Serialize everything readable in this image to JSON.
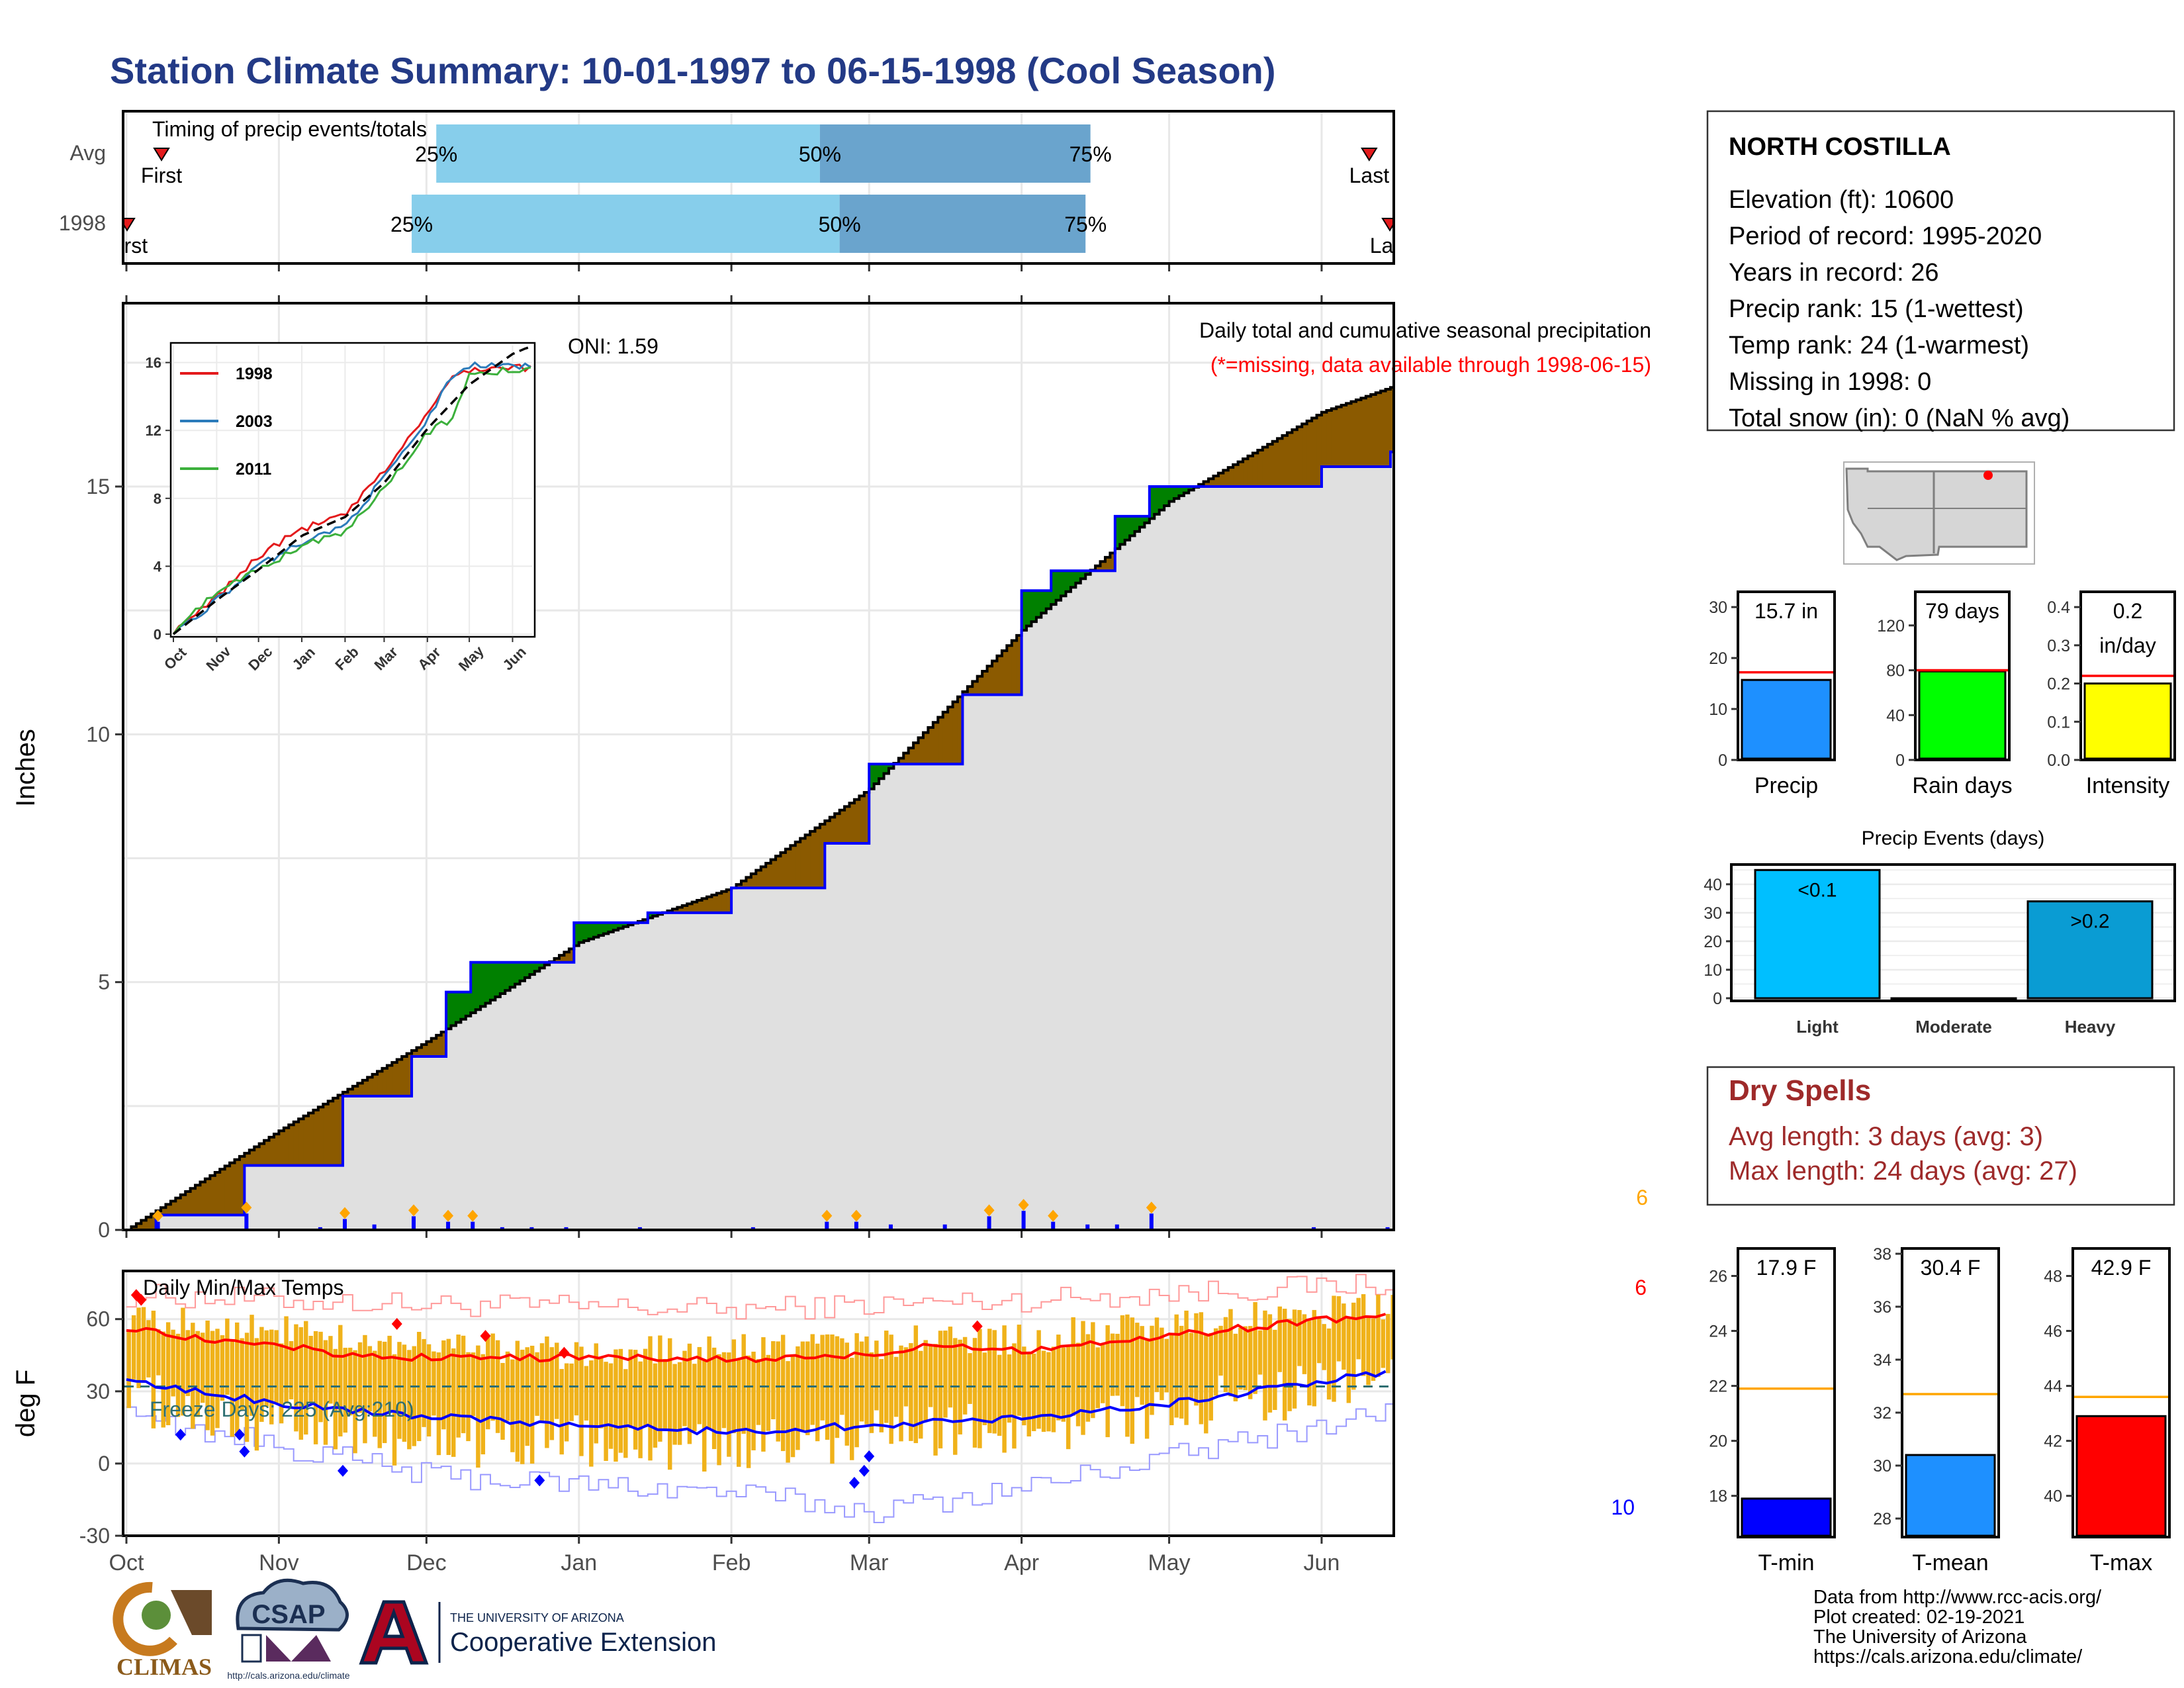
{
  "title": "Station Climate Summary: 10-01-1997 to 06-15-1998 (Cool Season)",
  "timing": {
    "title": "Timing of precip events/totals",
    "rows": [
      {
        "label": "Avg",
        "first_label": "First",
        "last_label": "Last",
        "first_date": "1997-10-08",
        "last_date": "1998-06-10",
        "q25_date": "1997-12-03",
        "q50_date": "1998-02-19",
        "q75_date": "1998-04-15",
        "q25_label": "25%",
        "q50_label": "50%",
        "q75_label": "75%"
      },
      {
        "label": "1998",
        "first_label": "First",
        "last_label": "Last",
        "first_date": "1997-10-01",
        "last_date": "1998-06-15",
        "q25_date": "1997-11-28",
        "q50_date": "1998-02-23",
        "q75_date": "1998-04-14",
        "q25_label": "25%",
        "q50_label": "50%",
        "q75_label": "75%"
      }
    ],
    "colors": {
      "q1": "#87ceeb",
      "q2": "#6aa4cd",
      "marker": "#e31a1c"
    }
  },
  "precip_panel": {
    "ylabel": "Inches",
    "annotation": "Daily total and cumulative seasonal precipitation",
    "missing_note": "(*=missing, data available through 1998-06-15)",
    "oni": "ONI: 1.59",
    "corner_count": "6",
    "colors": {
      "above": "#008000",
      "below": "#8b5a00",
      "fill": "#e0e0e0",
      "obs": "#0000ff",
      "avg": "#000000",
      "marker": "#ffa500"
    }
  },
  "inset": {
    "series": [
      {
        "name": "1998",
        "color": "#e31a1c"
      },
      {
        "name": "2003",
        "color": "#2b7bba"
      },
      {
        "name": "2011",
        "color": "#3cb03c"
      }
    ]
  },
  "temp_panel": {
    "ylabel": "deg F",
    "title": "Daily Min/Max Temps",
    "freeze_text": "Freeze Days: 225 (Avg:210)",
    "count_top": "6",
    "count_bottom": "10",
    "colors": {
      "bar": "#f0b21a",
      "max_avg": "#ff0000",
      "min_avg": "#0000ff",
      "record_hi": "#ff9999",
      "record_lo": "#9999ff",
      "freeze": "#2e6f72"
    }
  },
  "station": {
    "name": "NORTH COSTILLA",
    "lines": [
      "Elevation (ft): 10600",
      "Period of record: 1995-2020",
      "Years in record: 26",
      "Precip rank: 15 (1-wettest)",
      "Temp rank: 24 (1-warmest)",
      "Missing in 1998: 0",
      "Total snow (in): 0 (NaN % avg)"
    ]
  },
  "stat_bars": [
    {
      "label": "Precip",
      "value_text": "15.7 in",
      "value": 15.7,
      "avg": 17.2,
      "ylim": [
        0,
        33
      ],
      "ticks": [
        0,
        10,
        20,
        30
      ],
      "color": "#1e90ff"
    },
    {
      "label": "Rain days",
      "value_text": "79 days",
      "value": 79,
      "avg": 80,
      "ylim": [
        0,
        150
      ],
      "ticks": [
        0,
        40,
        80,
        120
      ],
      "color": "#00ff00"
    },
    {
      "label": "Intensity",
      "value_text": "0.2",
      "value_text2": "in/day",
      "value": 0.2,
      "avg": 0.22,
      "ylim": [
        0,
        0.44
      ],
      "ticks": [
        0.0,
        0.1,
        0.2,
        0.3,
        0.4
      ],
      "color": "#ffff00"
    }
  ],
  "precip_events": {
    "title": "Precip Events (days)",
    "categories": [
      "Light",
      "Moderate",
      "Heavy"
    ],
    "bar_labels": [
      "<0.1",
      "",
      ">0.2"
    ],
    "values": [
      45,
      0,
      34
    ],
    "ylim": [
      0,
      46
    ],
    "ticks": [
      0,
      10,
      20,
      30,
      40
    ],
    "colors": [
      "#00bfff",
      "#0a9cd3",
      "#0a9cd3"
    ]
  },
  "dry_spells": {
    "title": "Dry Spells",
    "lines": [
      "Avg length: 3 days (avg: 3)",
      "Max length: 24 days (avg: 27)"
    ]
  },
  "temp_bars": [
    {
      "label": "T-min",
      "value_text": "17.9 F",
      "value": 17.9,
      "avg": 21.9,
      "ylim": [
        16.5,
        27
      ],
      "ticks": [
        18,
        20,
        22,
        24,
        26
      ],
      "color": "#0000ff"
    },
    {
      "label": "T-mean",
      "value_text": "30.4 F",
      "value": 30.4,
      "avg": 32.7,
      "ylim": [
        27.3,
        38.2
      ],
      "ticks": [
        28,
        30,
        32,
        34,
        36,
        38
      ],
      "color": "#1e90ff"
    },
    {
      "label": "T-max",
      "value_text": "42.9 F",
      "value": 42.9,
      "avg": 43.6,
      "ylim": [
        38.5,
        49
      ],
      "ticks": [
        40,
        42,
        44,
        46,
        48
      ],
      "color": "#ff0000"
    }
  ],
  "credits": {
    "lines": [
      "Data from http://www.rcc-acis.org/",
      "Plot created: 02-19-2021",
      "The University of Arizona",
      "https://cals.arizona.edu/climate/"
    ],
    "climas": "CLIMAS",
    "csap": "CSAP",
    "csap_url": "http://cals.arizona.edu/climate",
    "ua_top": "THE UNIVERSITY OF ARIZONA",
    "ua_bottom": "Cooperative Extension"
  },
  "chart_data": [
    {
      "type": "area",
      "title": "Daily total and cumulative seasonal precipitation",
      "xlabel": "",
      "ylabel": "Inches",
      "x_range": [
        "1997-10-01",
        "1998-06-15"
      ],
      "ylim": [
        0,
        18.7
      ],
      "y_ticks": [
        0,
        5,
        10,
        15
      ],
      "x_ticks": [
        "Oct",
        "Nov",
        "Dec",
        "Jan",
        "Feb",
        "Mar",
        "Apr",
        "May",
        "Jun"
      ],
      "cumulative_observed": {
        "x": [
          "1997-10-01",
          "1997-10-07",
          "1997-10-25",
          "1997-11-14",
          "1997-11-28",
          "1997-12-05",
          "1997-12-10",
          "1997-12-31",
          "1998-01-15",
          "1998-02-01",
          "1998-02-20",
          "1998-03-01",
          "1998-03-20",
          "1998-04-01",
          "1998-04-07",
          "1998-04-20",
          "1998-04-27",
          "1998-05-15",
          "1998-06-01",
          "1998-06-15"
        ],
        "y": [
          0.0,
          0.3,
          1.3,
          2.7,
          3.5,
          4.8,
          5.4,
          6.2,
          6.4,
          6.9,
          7.8,
          9.4,
          10.8,
          12.9,
          13.3,
          14.4,
          15.0,
          15.0,
          15.4,
          15.7
        ]
      },
      "cumulative_average": {
        "x": [
          "1997-10-01",
          "1997-11-01",
          "1997-12-01",
          "1998-01-01",
          "1998-02-01",
          "1998-03-01",
          "1998-04-01",
          "1998-05-01",
          "1998-05-15",
          "1998-06-01",
          "1998-06-15"
        ],
        "y": [
          0.0,
          2.0,
          3.8,
          5.8,
          6.9,
          8.9,
          12.1,
          14.7,
          15.5,
          16.5,
          17.0
        ]
      },
      "daily_events": [
        {
          "x": "1997-10-07",
          "y": 0.3
        },
        {
          "x": "1997-10-25",
          "y": 0.6
        },
        {
          "x": "1997-11-09",
          "y": 0.1
        },
        {
          "x": "1997-11-14",
          "y": 0.4
        },
        {
          "x": "1997-11-20",
          "y": 0.2
        },
        {
          "x": "1997-11-28",
          "y": 0.5
        },
        {
          "x": "1997-12-05",
          "y": 0.3
        },
        {
          "x": "1997-12-10",
          "y": 0.3
        },
        {
          "x": "1997-12-16",
          "y": 0.1
        },
        {
          "x": "1997-12-22",
          "y": 0.1
        },
        {
          "x": "1997-12-29",
          "y": 0.1
        },
        {
          "x": "1998-01-13",
          "y": 0.1
        },
        {
          "x": "1998-02-05",
          "y": 0.1
        },
        {
          "x": "1998-02-20",
          "y": 0.3
        },
        {
          "x": "1998-02-26",
          "y": 0.3
        },
        {
          "x": "1998-03-05",
          "y": 0.2
        },
        {
          "x": "1998-03-16",
          "y": 0.2
        },
        {
          "x": "1998-03-25",
          "y": 0.5
        },
        {
          "x": "1998-04-01",
          "y": 0.7
        },
        {
          "x": "1998-04-07",
          "y": 0.3
        },
        {
          "x": "1998-04-14",
          "y": 0.2
        },
        {
          "x": "1998-04-20",
          "y": 0.2
        },
        {
          "x": "1998-04-27",
          "y": 0.6
        },
        {
          "x": "1998-05-30",
          "y": 0.1
        },
        {
          "x": "1998-06-14",
          "y": 0.1
        }
      ]
    },
    {
      "type": "line",
      "title": "",
      "x_ticks": [
        "Oct",
        "Nov",
        "Dec",
        "Jan",
        "Feb",
        "Mar",
        "Apr",
        "May",
        "Jun"
      ],
      "ylim": [
        0,
        17
      ],
      "y_ticks": [
        0,
        4,
        8,
        12,
        16
      ],
      "series": [
        {
          "name": "1998",
          "x": [
            "1997-10-01",
            "1997-11-01",
            "1997-12-01",
            "1998-01-01",
            "1998-02-01",
            "1998-03-01",
            "1998-04-01",
            "1998-04-20",
            "1998-05-01",
            "1998-06-15"
          ],
          "y": [
            0.0,
            2.2,
            4.6,
            6.2,
            7.0,
            9.6,
            13.0,
            15.2,
            15.6,
            15.7
          ]
        },
        {
          "name": "2003",
          "x": [
            "1997-10-01",
            "1997-11-01",
            "1997-12-01",
            "1998-01-01",
            "1998-02-01",
            "1998-03-01",
            "1998-04-01",
            "1998-04-20",
            "1998-05-01",
            "1998-06-15"
          ],
          "y": [
            0.0,
            2.0,
            4.0,
            5.4,
            6.4,
            9.2,
            12.6,
            15.4,
            15.8,
            15.8
          ]
        },
        {
          "name": "2011",
          "x": [
            "1997-10-01",
            "1997-11-01",
            "1997-12-01",
            "1998-01-01",
            "1998-02-01",
            "1998-03-01",
            "1998-04-01",
            "1998-04-20",
            "1998-05-01",
            "1998-06-15"
          ],
          "y": [
            0.0,
            2.6,
            3.8,
            5.2,
            6.0,
            8.6,
            11.8,
            12.8,
            15.4,
            15.6
          ]
        },
        {
          "name": "average",
          "x": [
            "1997-10-01",
            "1997-11-01",
            "1997-12-01",
            "1998-01-01",
            "1998-02-01",
            "1998-03-01",
            "1998-04-01",
            "1998-05-01",
            "1998-06-01",
            "1998-06-15"
          ],
          "y": [
            0.0,
            2.0,
            3.8,
            5.8,
            6.9,
            8.9,
            12.1,
            14.7,
            16.5,
            17.0
          ]
        }
      ]
    },
    {
      "type": "bar",
      "title": "Daily Min/Max Temps",
      "ylabel": "deg F",
      "ylim": [
        -30,
        80
      ],
      "y_ticks": [
        -30,
        0,
        30,
        60
      ],
      "x_ticks": [
        "Oct",
        "Nov",
        "Dec",
        "Jan",
        "Feb",
        "Mar",
        "Apr",
        "May",
        "Jun"
      ],
      "freeze_line": 32,
      "avg_max": {
        "x": [
          "1997-10-01",
          "1997-10-15",
          "1997-11-01",
          "1997-11-15",
          "1997-12-01",
          "1998-01-01",
          "1998-02-01",
          "1998-03-01",
          "1998-03-15",
          "1998-04-01",
          "1998-05-01",
          "1998-05-15",
          "1998-06-01",
          "1998-06-15"
        ],
        "y": [
          56,
          52,
          49,
          45,
          44,
          44,
          43,
          45,
          50,
          47,
          53,
          56,
          60,
          61
        ]
      },
      "avg_min": {
        "x": [
          "1997-10-01",
          "1997-10-15",
          "1997-11-01",
          "1997-11-15",
          "1997-12-01",
          "1998-01-01",
          "1998-02-01",
          "1998-03-01",
          "1998-04-01",
          "1998-05-01",
          "1998-06-01",
          "1998-06-15"
        ],
        "y": [
          34,
          30,
          25,
          22,
          20,
          16,
          13,
          16,
          19,
          25,
          34,
          38
        ]
      },
      "daily_range_low": {
        "x": [
          "1997-10-01",
          "1997-11-01",
          "1997-12-01",
          "1998-01-01",
          "1998-02-01",
          "1998-03-01",
          "1998-04-01",
          "1998-05-01",
          "1998-06-15"
        ],
        "y": [
          28,
          15,
          10,
          8,
          5,
          12,
          15,
          22,
          35
        ]
      },
      "daily_range_high": {
        "x": [
          "1997-10-01",
          "1997-11-01",
          "1997-12-01",
          "1998-01-01",
          "1998-02-01",
          "1998-03-01",
          "1998-04-01",
          "1998-05-01",
          "1998-06-15"
        ],
        "y": [
          60,
          55,
          50,
          45,
          48,
          50,
          52,
          58,
          65
        ]
      },
      "record_high": {
        "x": [
          "1997-10-01",
          "1997-12-01",
          "1998-02-01",
          "1998-04-01",
          "1998-06-15"
        ],
        "y": [
          70,
          66,
          64,
          68,
          75
        ]
      },
      "record_low": {
        "x": [
          "1997-10-01",
          "1997-12-01",
          "1998-02-01",
          "1998-03-01",
          "1998-04-01",
          "1998-06-15"
        ],
        "y": [
          20,
          -5,
          -12,
          -20,
          -10,
          22
        ]
      }
    }
  ]
}
